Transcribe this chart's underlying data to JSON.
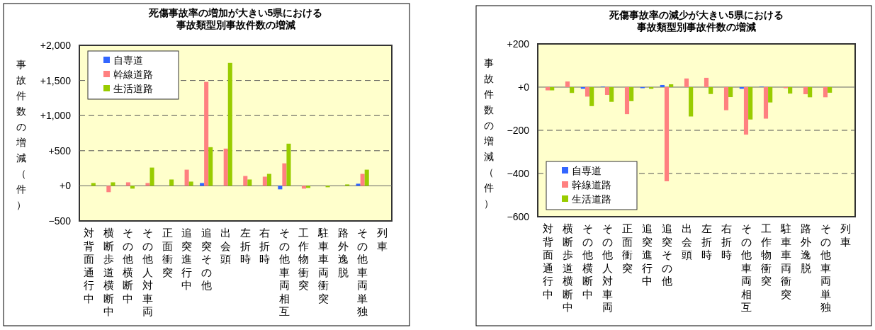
{
  "chart_data": [
    {
      "type": "bar",
      "title": "死傷事故率の増加が大きい5県における事故類型別事故件数の増減",
      "ylabel": "事故件数の増減（件）",
      "categories": [
        "対背面通行中",
        "横断歩道横断中",
        "その他横断中",
        "その他人対車両",
        "正面衝突",
        "追突進行中",
        "追突その他",
        "出会頭",
        "左折時",
        "右折時",
        "その他車両相互",
        "工作物衝突",
        "駐車車両衝突",
        "路外逸脱",
        "その他車両単独",
        "列車"
      ],
      "series": [
        {
          "name": "自専道",
          "color": "#3366ff",
          "values": [
            0,
            0,
            0,
            0,
            0,
            0,
            40,
            0,
            0,
            0,
            -50,
            0,
            0,
            0,
            30,
            0
          ]
        },
        {
          "name": "幹線道路",
          "color": "#ff8080",
          "values": [
            0,
            -90,
            50,
            40,
            0,
            230,
            1480,
            530,
            140,
            130,
            320,
            -40,
            0,
            0,
            170,
            0
          ]
        },
        {
          "name": "生活道路",
          "color": "#99cc00",
          "values": [
            40,
            50,
            -40,
            260,
            90,
            60,
            550,
            1750,
            90,
            170,
            600,
            -30,
            -20,
            20,
            230,
            0
          ]
        }
      ],
      "ylim": [
        -500,
        2000
      ],
      "yticks": [
        {
          "value": -500,
          "label": "−500"
        },
        {
          "value": 0,
          "label": "+0"
        },
        {
          "value": 500,
          "label": "+500"
        },
        {
          "value": 1000,
          "label": "+1,000"
        },
        {
          "value": 1500,
          "label": "+1,500"
        },
        {
          "value": 2000,
          "label": "+2,000"
        }
      ],
      "grid": "y",
      "legend": "top left"
    },
    {
      "type": "bar",
      "title": "死傷事故率の減少が大きい5県における事故類型別事故件数の増減",
      "ylabel": "事故件数の増減（件）",
      "categories": [
        "対背面通行中",
        "横断歩道横断中",
        "その他横断中",
        "その他人対車両",
        "正面衝突",
        "追突進行中",
        "追突その他",
        "出会頭",
        "左折時",
        "右折時",
        "その他車両相互",
        "工作物衝突",
        "駐車車両衝突",
        "路外逸脱",
        "その他車両単独",
        "列車"
      ],
      "series": [
        {
          "name": "自専道",
          "color": "#3366ff",
          "values": [
            0,
            0,
            -8,
            2,
            0,
            -5,
            10,
            0,
            0,
            0,
            -8,
            2,
            0,
            0,
            0,
            0
          ]
        },
        {
          "name": "幹線道路",
          "color": "#ff8080",
          "values": [
            -15,
            26,
            -44,
            -36,
            -125,
            0,
            -436,
            40,
            43,
            -107,
            -220,
            -146,
            -5,
            -33,
            -47,
            0
          ]
        },
        {
          "name": "生活道路",
          "color": "#99cc00",
          "values": [
            -15,
            -27,
            -88,
            -68,
            -65,
            -8,
            13,
            -136,
            -32,
            -46,
            -150,
            -71,
            -30,
            -47,
            -26,
            0
          ]
        }
      ],
      "ylim": [
        -600,
        200
      ],
      "yticks": [
        {
          "value": -600,
          "label": "−600"
        },
        {
          "value": -400,
          "label": "−400"
        },
        {
          "value": -200,
          "label": "−200"
        },
        {
          "value": 0,
          "label": "+0"
        },
        {
          "value": 200,
          "label": "+200"
        }
      ],
      "grid": "y",
      "legend": "bottom left"
    }
  ]
}
